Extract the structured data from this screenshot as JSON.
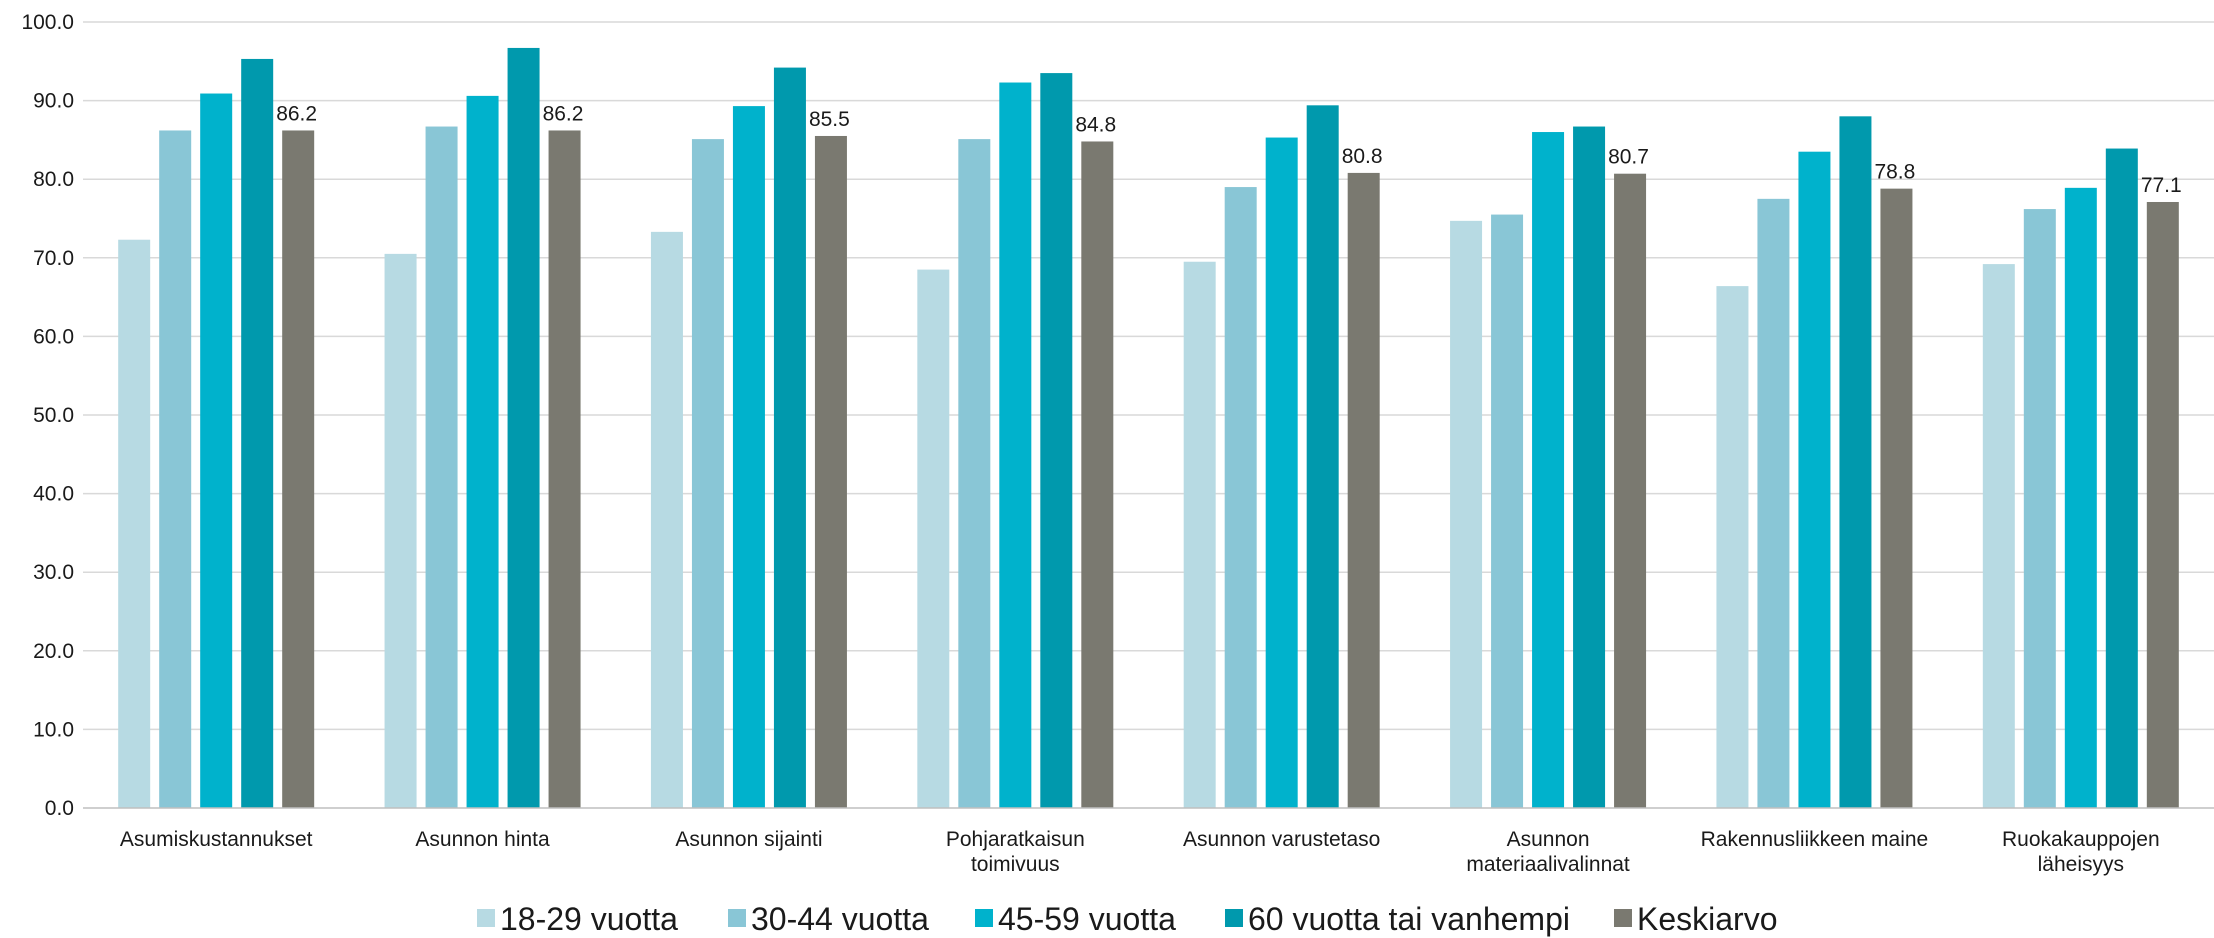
{
  "chart_data": {
    "type": "bar",
    "categories": [
      [
        "Asumiskustannukset"
      ],
      [
        "Asunnon hinta"
      ],
      [
        "Asunnon sijainti"
      ],
      [
        "Pohjaratkaisun",
        "toimivuus"
      ],
      [
        "Asunnon varustetaso"
      ],
      [
        "Asunnon",
        "materiaalivalinnat"
      ],
      [
        "Rakennusliikkeen maine"
      ],
      [
        "Ruokakauppojen",
        "läheisyys"
      ]
    ],
    "series": [
      {
        "name": "18-29 vuotta",
        "color": "#b7dae3",
        "values": [
          72.3,
          70.5,
          73.3,
          68.5,
          69.5,
          74.7,
          66.4,
          69.2
        ]
      },
      {
        "name": "30-44 vuotta",
        "color": "#89c6d6",
        "values": [
          86.2,
          86.7,
          85.1,
          85.1,
          79.0,
          75.5,
          77.5,
          76.2
        ]
      },
      {
        "name": "45-59 vuotta",
        "color": "#00b2cc",
        "values": [
          90.9,
          90.6,
          89.3,
          92.3,
          85.3,
          86.0,
          83.5,
          78.9
        ]
      },
      {
        "name": "60 vuotta tai vanhempi",
        "color": "#0099ad",
        "values": [
          95.3,
          96.7,
          94.2,
          93.5,
          89.4,
          86.7,
          88.0,
          83.9
        ]
      },
      {
        "name": "Keskiarvo",
        "color": "#7a7970",
        "values": [
          86.2,
          86.2,
          85.5,
          84.8,
          80.8,
          80.7,
          78.8,
          77.1
        ]
      }
    ],
    "data_labels": [
      "86.2",
      "86.2",
      "85.5",
      "84.8",
      "80.8",
      "80.7",
      "78.8",
      "77.1"
    ],
    "labeled_series": "Keskiarvo",
    "y_ticks": [
      "0.0",
      "10.0",
      "20.0",
      "30.0",
      "40.0",
      "50.0",
      "60.0",
      "70.0",
      "80.0",
      "90.0",
      "100.0"
    ],
    "ylim": [
      0,
      100
    ],
    "title": "",
    "xlabel": "",
    "ylabel": "",
    "grid": "horizontal",
    "legend_position": "bottom",
    "gridline_color": "#d9d9d9",
    "axis_color": "#bfbfbf"
  }
}
